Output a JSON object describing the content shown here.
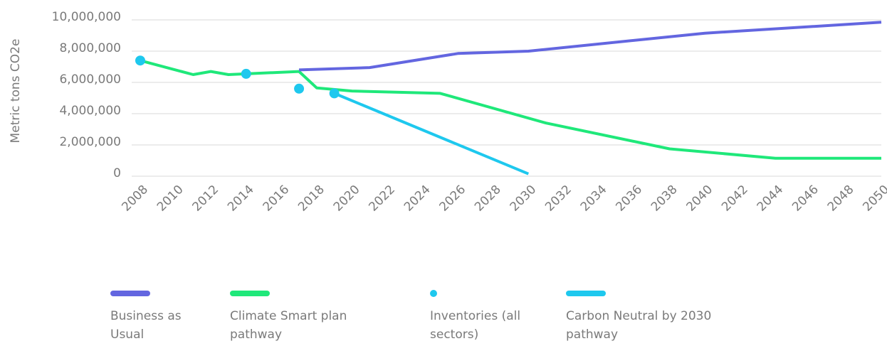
{
  "chart_data": {
    "type": "line",
    "ylabel": "Metric tons CO2e",
    "xlim": [
      2008,
      2050
    ],
    "ylim": [
      0,
      10000000
    ],
    "xticks": [
      2008,
      2010,
      2012,
      2014,
      2016,
      2018,
      2020,
      2022,
      2024,
      2026,
      2028,
      2030,
      2032,
      2034,
      2036,
      2038,
      2040,
      2042,
      2044,
      2046,
      2048,
      2050
    ],
    "yticks": [
      0,
      {
        "value": 2000000,
        "label": "2,000,000"
      },
      {
        "value": 4000000,
        "label": "4,000,000"
      },
      {
        "value": 6000000,
        "label": "6,000,000"
      },
      {
        "value": 8000000,
        "label": "8,000,000"
      },
      {
        "value": 10000000,
        "label": "10,000,000"
      }
    ],
    "grid": true,
    "series": [
      {
        "name": "Business as Usual",
        "color": "#6366e0",
        "type": "line",
        "x": [
          2017,
          2021,
          2026,
          2030,
          2040,
          2050
        ],
        "values": [
          6800000,
          6950000,
          7850000,
          8000000,
          9150000,
          9850000
        ]
      },
      {
        "name": "Climate Smart plan pathway",
        "color": "#1fe87a",
        "type": "line",
        "x": [
          2008,
          2011,
          2012,
          2013,
          2017,
          2018,
          2020,
          2025,
          2031,
          2038,
          2044,
          2050
        ],
        "values": [
          7400000,
          6500000,
          6700000,
          6500000,
          6700000,
          5650000,
          5450000,
          5300000,
          3400000,
          1750000,
          1150000,
          1150000
        ]
      },
      {
        "name": "Inventories (all sectors)",
        "color": "#1ec8ee",
        "type": "scatter",
        "x": [
          2008,
          2014,
          2017,
          2019
        ],
        "values": [
          7400000,
          6550000,
          5600000,
          5300000
        ]
      },
      {
        "name": "Carbon Neutral by 2030 pathway",
        "color": "#1ec8ee",
        "type": "line",
        "x": [
          2019,
          2030
        ],
        "values": [
          5300000,
          150000
        ]
      }
    ]
  }
}
